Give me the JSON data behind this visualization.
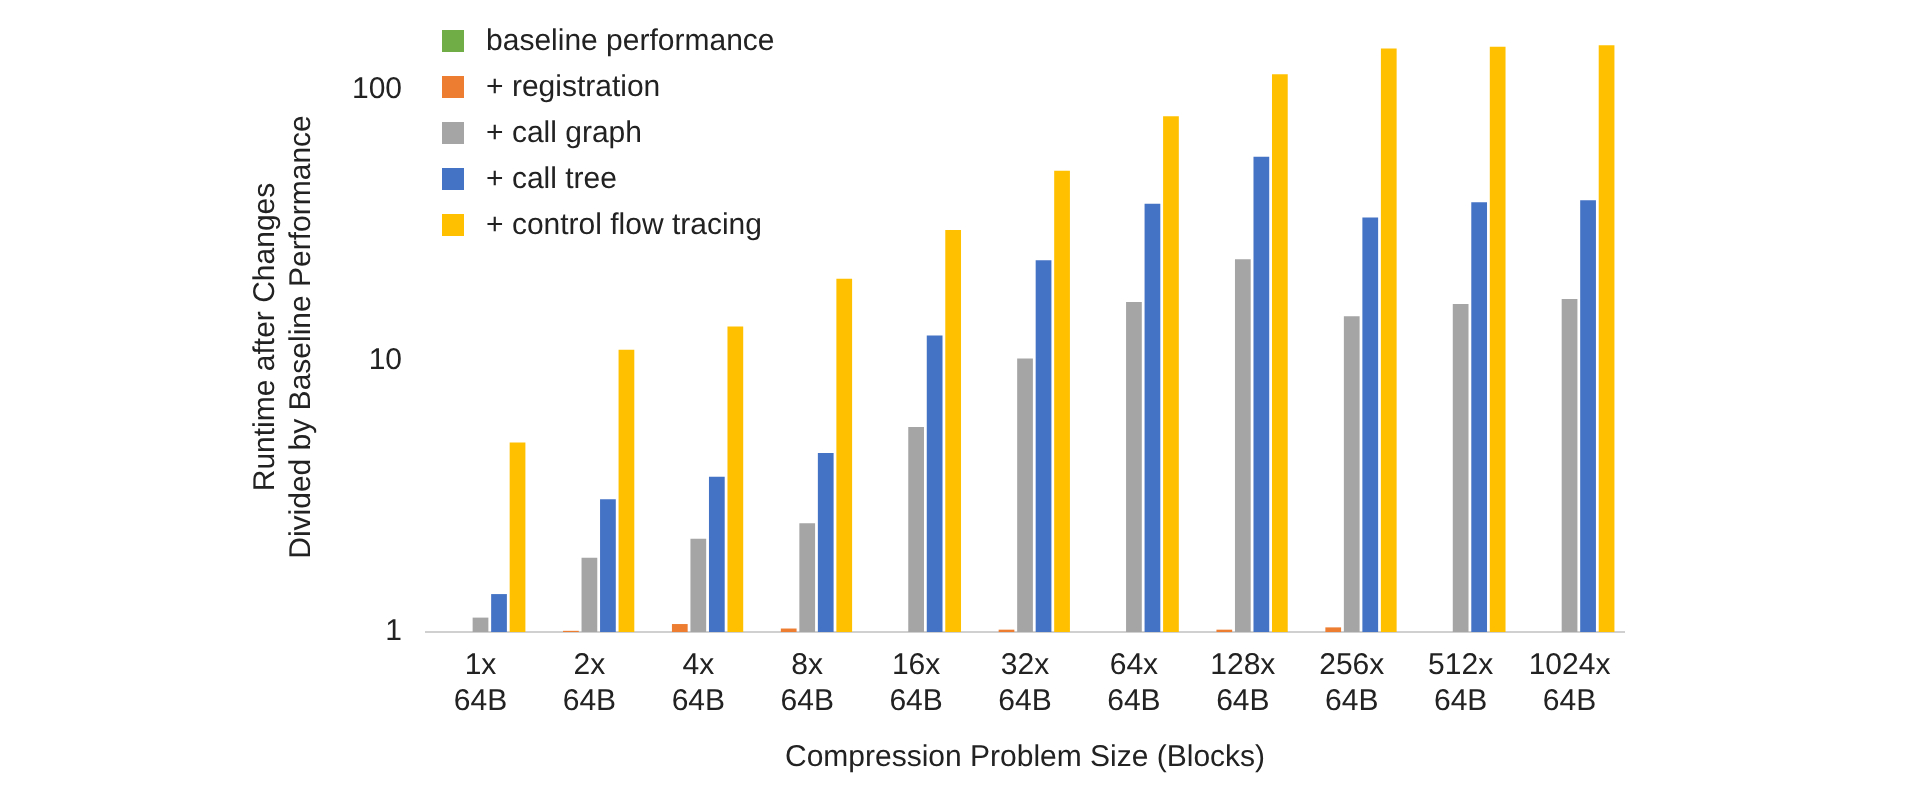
{
  "chart_data": {
    "type": "bar",
    "xlabel": "Compression Problem Size (Blocks)",
    "ylabel": "Runtime after Changes\nDivided by Baseline Performance",
    "categories": [
      "1x 64B",
      "2x 64B",
      "4x 64B",
      "8x 64B",
      "16x 64B",
      "32x 64B",
      "64x 64B",
      "128x 64B",
      "256x 64B",
      "512x 64B",
      "1024x 64B"
    ],
    "series": [
      {
        "name": "baseline performance",
        "color": "#70ad47",
        "values": [
          1,
          1,
          1,
          1,
          1,
          1,
          1,
          1,
          1,
          1,
          1
        ]
      },
      {
        "name": "+ registration",
        "color": "#ed7d31",
        "values": [
          1,
          1.01,
          1.07,
          1.03,
          1,
          1.02,
          1,
          1.02,
          1.04,
          1,
          1
        ]
      },
      {
        "name": "+ call graph",
        "color": "#a5a5a5",
        "values": [
          1.13,
          1.88,
          2.21,
          2.52,
          5.7,
          10.2,
          16.5,
          23.7,
          14.6,
          16.2,
          16.9
        ]
      },
      {
        "name": "+ call tree",
        "color": "#4472c4",
        "values": [
          1.38,
          3.09,
          3.74,
          4.57,
          12.4,
          23.5,
          38,
          56.6,
          33.8,
          38.5,
          39.1
        ]
      },
      {
        "name": "+ control flow tracing",
        "color": "#ffc000",
        "values": [
          5.0,
          11.0,
          13.4,
          20.1,
          30.4,
          50.3,
          79.8,
          114,
          142,
          144,
          146
        ]
      }
    ],
    "log": "y",
    "ylim": [
      1,
      150
    ],
    "yticks": [
      1,
      10,
      100
    ],
    "grid": false,
    "legend": "top left"
  }
}
